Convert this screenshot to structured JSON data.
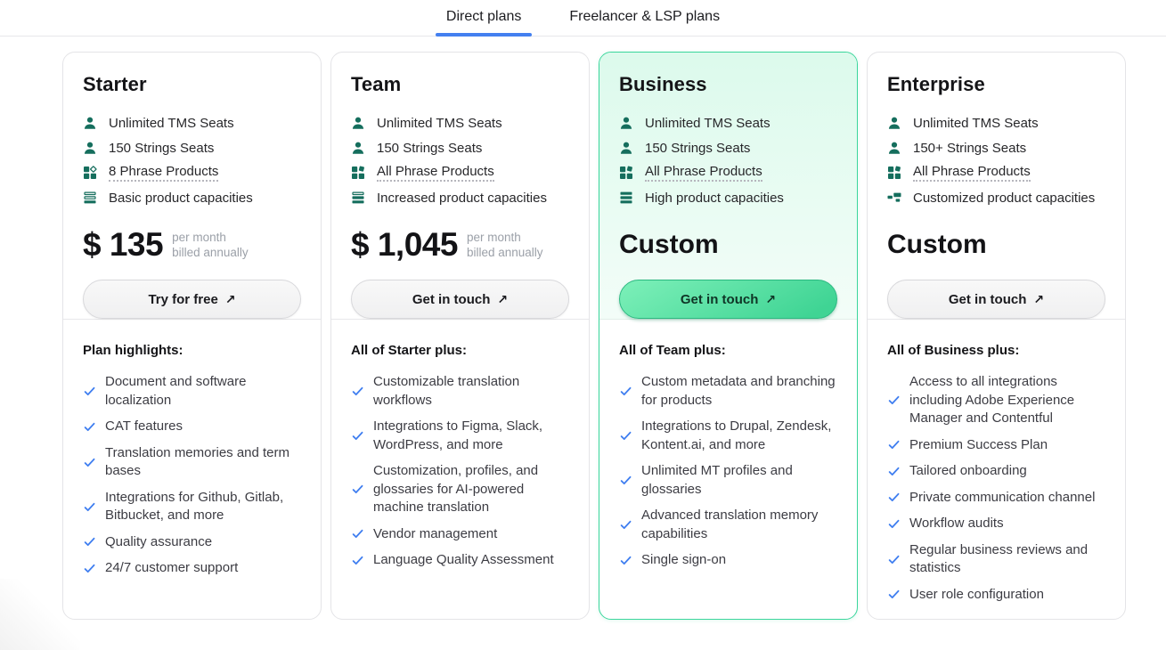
{
  "tabs": {
    "items": [
      {
        "label": "Direct plans",
        "active": true
      },
      {
        "label": "Freelancer & LSP plans",
        "active": false
      }
    ]
  },
  "ui": {
    "cta_arrow": "↗",
    "colors": {
      "tab_active_underline": "#4380f0",
      "icon_teal": "#156e5d",
      "check_blue": "#3f7ef0",
      "highlight_border": "#3bd69c",
      "highlight_bg_top": "#dcfaec",
      "cta_green_start": "#7df0b9",
      "cta_green_end": "#3fd494"
    }
  },
  "plans": [
    {
      "name": "Starter",
      "highlighted": false,
      "features": [
        {
          "icon": "user-icon",
          "text": "Unlimited TMS Seats",
          "underline": false
        },
        {
          "icon": "user-icon",
          "text": "150 Strings Seats",
          "underline": false
        },
        {
          "icon": "products-diamond-icon",
          "text": "8 Phrase Products",
          "underline": true
        },
        {
          "icon": "capacity-basic-icon",
          "text": "Basic product capacities",
          "underline": false
        }
      ],
      "price": {
        "currency": "$",
        "amount": "135",
        "note_line1": "per month",
        "note_line2": "billed annually"
      },
      "cta": {
        "label": "Try for free",
        "style": "default"
      },
      "list_title": "Plan highlights:",
      "list": [
        "Document and software localization",
        "CAT features",
        "Translation memories and term bases",
        "Integrations for Github, Gitlab, Bitbucket, and more",
        "Quality assurance",
        "24/7 customer support"
      ]
    },
    {
      "name": "Team",
      "highlighted": false,
      "features": [
        {
          "icon": "user-icon",
          "text": "Unlimited TMS Seats",
          "underline": false
        },
        {
          "icon": "user-icon",
          "text": "150 Strings Seats",
          "underline": false
        },
        {
          "icon": "products-icon",
          "text": "All Phrase Products",
          "underline": true
        },
        {
          "icon": "capacity-increased-icon",
          "text": "Increased product capacities",
          "underline": false
        }
      ],
      "price": {
        "currency": "$",
        "amount": "1,045",
        "note_line1": "per month",
        "note_line2": "billed annually"
      },
      "cta": {
        "label": "Get in touch",
        "style": "default"
      },
      "list_title": "All of Starter plus:",
      "list": [
        "Customizable translation workflows",
        "Integrations to Figma, Slack, WordPress, and more",
        "Customization, profiles, and glossaries for AI-powered machine translation",
        "Vendor management",
        "Language Quality Assessment"
      ]
    },
    {
      "name": "Business",
      "highlighted": true,
      "features": [
        {
          "icon": "user-icon",
          "text": "Unlimited TMS Seats",
          "underline": false
        },
        {
          "icon": "user-icon",
          "text": "150 Strings Seats",
          "underline": false
        },
        {
          "icon": "products-icon",
          "text": "All Phrase Products",
          "underline": true
        },
        {
          "icon": "capacity-high-icon",
          "text": "High product capacities",
          "underline": false
        }
      ],
      "price": {
        "custom": "Custom"
      },
      "cta": {
        "label": "Get in touch",
        "style": "green"
      },
      "list_title": "All of Team plus:",
      "list": [
        "Custom metadata and branching for products",
        "Integrations to Drupal, Zendesk, Kontent.ai, and more",
        "Unlimited MT profiles and glossaries",
        "Advanced translation memory capabilities",
        "Single sign-on"
      ]
    },
    {
      "name": "Enterprise",
      "highlighted": false,
      "features": [
        {
          "icon": "user-icon",
          "text": "Unlimited TMS Seats",
          "underline": false
        },
        {
          "icon": "user-icon",
          "text": "150+ Strings Seats",
          "underline": false
        },
        {
          "icon": "products-icon",
          "text": "All Phrase Products",
          "underline": true
        },
        {
          "icon": "capacity-custom-icon",
          "text": "Customized product capacities",
          "underline": false
        }
      ],
      "price": {
        "custom": "Custom"
      },
      "cta": {
        "label": "Get in touch",
        "style": "default"
      },
      "list_title": "All of Business plus:",
      "list": [
        "Access to all integrations including Adobe Experience Manager and Contentful",
        "Premium Success Plan",
        "Tailored onboarding",
        "Private communication channel",
        "Workflow audits",
        "Regular business reviews and statistics",
        "User role configuration"
      ]
    }
  ]
}
